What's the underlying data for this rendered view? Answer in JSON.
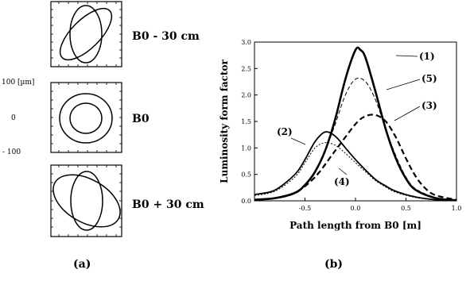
{
  "panel_a": {
    "caption": "(a)",
    "labels": [
      "B0 - 30 cm",
      "B0",
      "B0 + 30 cm"
    ],
    "y_ticks": [
      "100 [µm]",
      "0",
      "- 100"
    ]
  },
  "panel_b": {
    "caption": "(b)",
    "chart_data": {
      "type": "line",
      "xlabel": "Path length from B0 [m]",
      "ylabel": "Luminosity form factor",
      "xlim": [
        -1.0,
        1.0
      ],
      "ylim": [
        0.0,
        3.0
      ],
      "x_ticks": [
        "-0.5",
        "0.0",
        "0.5",
        "1.0"
      ],
      "y_ticks": [
        "0.0",
        "0.5",
        "1.0",
        "1.5",
        "2.0",
        "2.5",
        "3.0"
      ],
      "series": [
        {
          "name": "(1)",
          "style": "thick-solid",
          "x": [
            -1.0,
            -0.8,
            -0.6,
            -0.5,
            -0.4,
            -0.3,
            -0.2,
            -0.1,
            0.0,
            0.05,
            0.1,
            0.2,
            0.3,
            0.4,
            0.5,
            0.6,
            0.8,
            1.0
          ],
          "y": [
            0.02,
            0.05,
            0.15,
            0.3,
            0.55,
            0.95,
            1.55,
            2.3,
            2.85,
            2.85,
            2.7,
            2.05,
            1.35,
            0.8,
            0.42,
            0.2,
            0.05,
            0.01
          ]
        },
        {
          "name": "(5)",
          "style": "thin-dashed",
          "x": [
            -1.0,
            -0.8,
            -0.6,
            -0.5,
            -0.4,
            -0.3,
            -0.2,
            -0.1,
            0.0,
            0.1,
            0.2,
            0.3,
            0.4,
            0.5,
            0.6,
            0.8,
            1.0
          ],
          "y": [
            0.02,
            0.05,
            0.15,
            0.3,
            0.55,
            0.95,
            1.45,
            2.0,
            2.3,
            2.25,
            1.9,
            1.35,
            0.85,
            0.45,
            0.22,
            0.06,
            0.01
          ]
        },
        {
          "name": "(3)",
          "style": "thick-dashed",
          "x": [
            -1.0,
            -0.8,
            -0.6,
            -0.4,
            -0.2,
            0.0,
            0.1,
            0.2,
            0.3,
            0.4,
            0.5,
            0.6,
            0.7,
            0.8,
            1.0
          ],
          "y": [
            0.02,
            0.05,
            0.15,
            0.45,
            0.95,
            1.45,
            1.6,
            1.62,
            1.5,
            1.2,
            0.8,
            0.45,
            0.22,
            0.1,
            0.02
          ]
        },
        {
          "name": "(2)",
          "style": "medium-solid",
          "x": [
            -1.0,
            -0.8,
            -0.6,
            -0.5,
            -0.4,
            -0.3,
            -0.2,
            -0.1,
            0.0,
            0.1,
            0.2,
            0.3,
            0.4,
            0.6,
            0.8,
            1.0
          ],
          "y": [
            0.12,
            0.2,
            0.5,
            0.78,
            1.12,
            1.3,
            1.22,
            1.0,
            0.78,
            0.58,
            0.4,
            0.28,
            0.18,
            0.07,
            0.02,
            0.01
          ]
        },
        {
          "name": "(4)",
          "style": "thin-dotted",
          "x": [
            -1.0,
            -0.8,
            -0.6,
            -0.5,
            -0.4,
            -0.3,
            -0.2,
            -0.1,
            0.0,
            0.1,
            0.2,
            0.3,
            0.4,
            0.6,
            0.8,
            1.0
          ],
          "y": [
            0.1,
            0.18,
            0.45,
            0.72,
            1.0,
            1.1,
            1.05,
            0.9,
            0.72,
            0.55,
            0.38,
            0.26,
            0.16,
            0.06,
            0.02,
            0.01
          ]
        }
      ]
    }
  }
}
